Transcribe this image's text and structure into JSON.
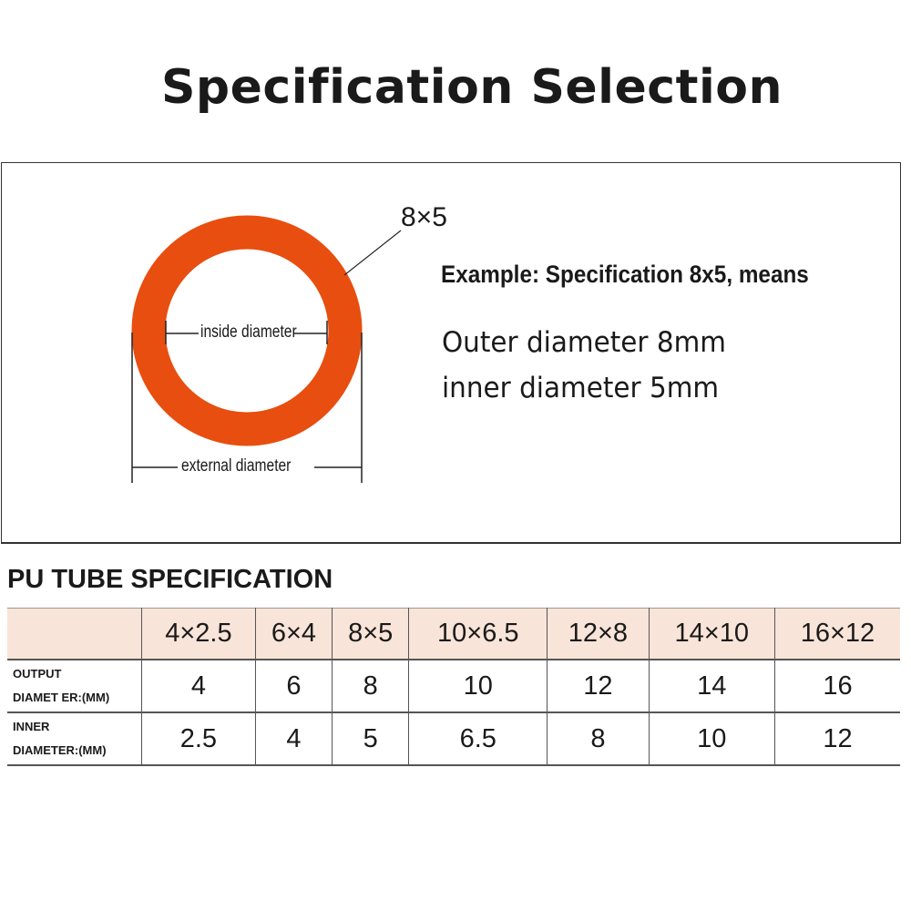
{
  "title": "Specification Selection",
  "diagram": {
    "spec_label": "8×5",
    "inside_label": "inside diameter",
    "external_label": "external diameter",
    "ring_color": "#e84e0f"
  },
  "example": {
    "heading": "Example: Specification 8x5, means",
    "outer": "Outer diameter 8mm",
    "inner": "inner diameter 5mm"
  },
  "table": {
    "title": "PU TUBE SPECIFICATION",
    "header_bg": "#f8e4d8",
    "columns": [
      "4×2.5",
      "6×4",
      "8×5",
      "10×6.5",
      "12×8",
      "14×10",
      "16×12"
    ],
    "rows": [
      {
        "label_1": "OUTPUT",
        "label_2": "DIAMET ER:(MM)",
        "values": [
          "4",
          "6",
          "8",
          "10",
          "12",
          "14",
          "16"
        ]
      },
      {
        "label_1": "INNER",
        "label_2": "DIAMETER:(MM)",
        "values": [
          "2.5",
          "4",
          "5",
          "6.5",
          "8",
          "10",
          "12"
        ]
      }
    ]
  }
}
